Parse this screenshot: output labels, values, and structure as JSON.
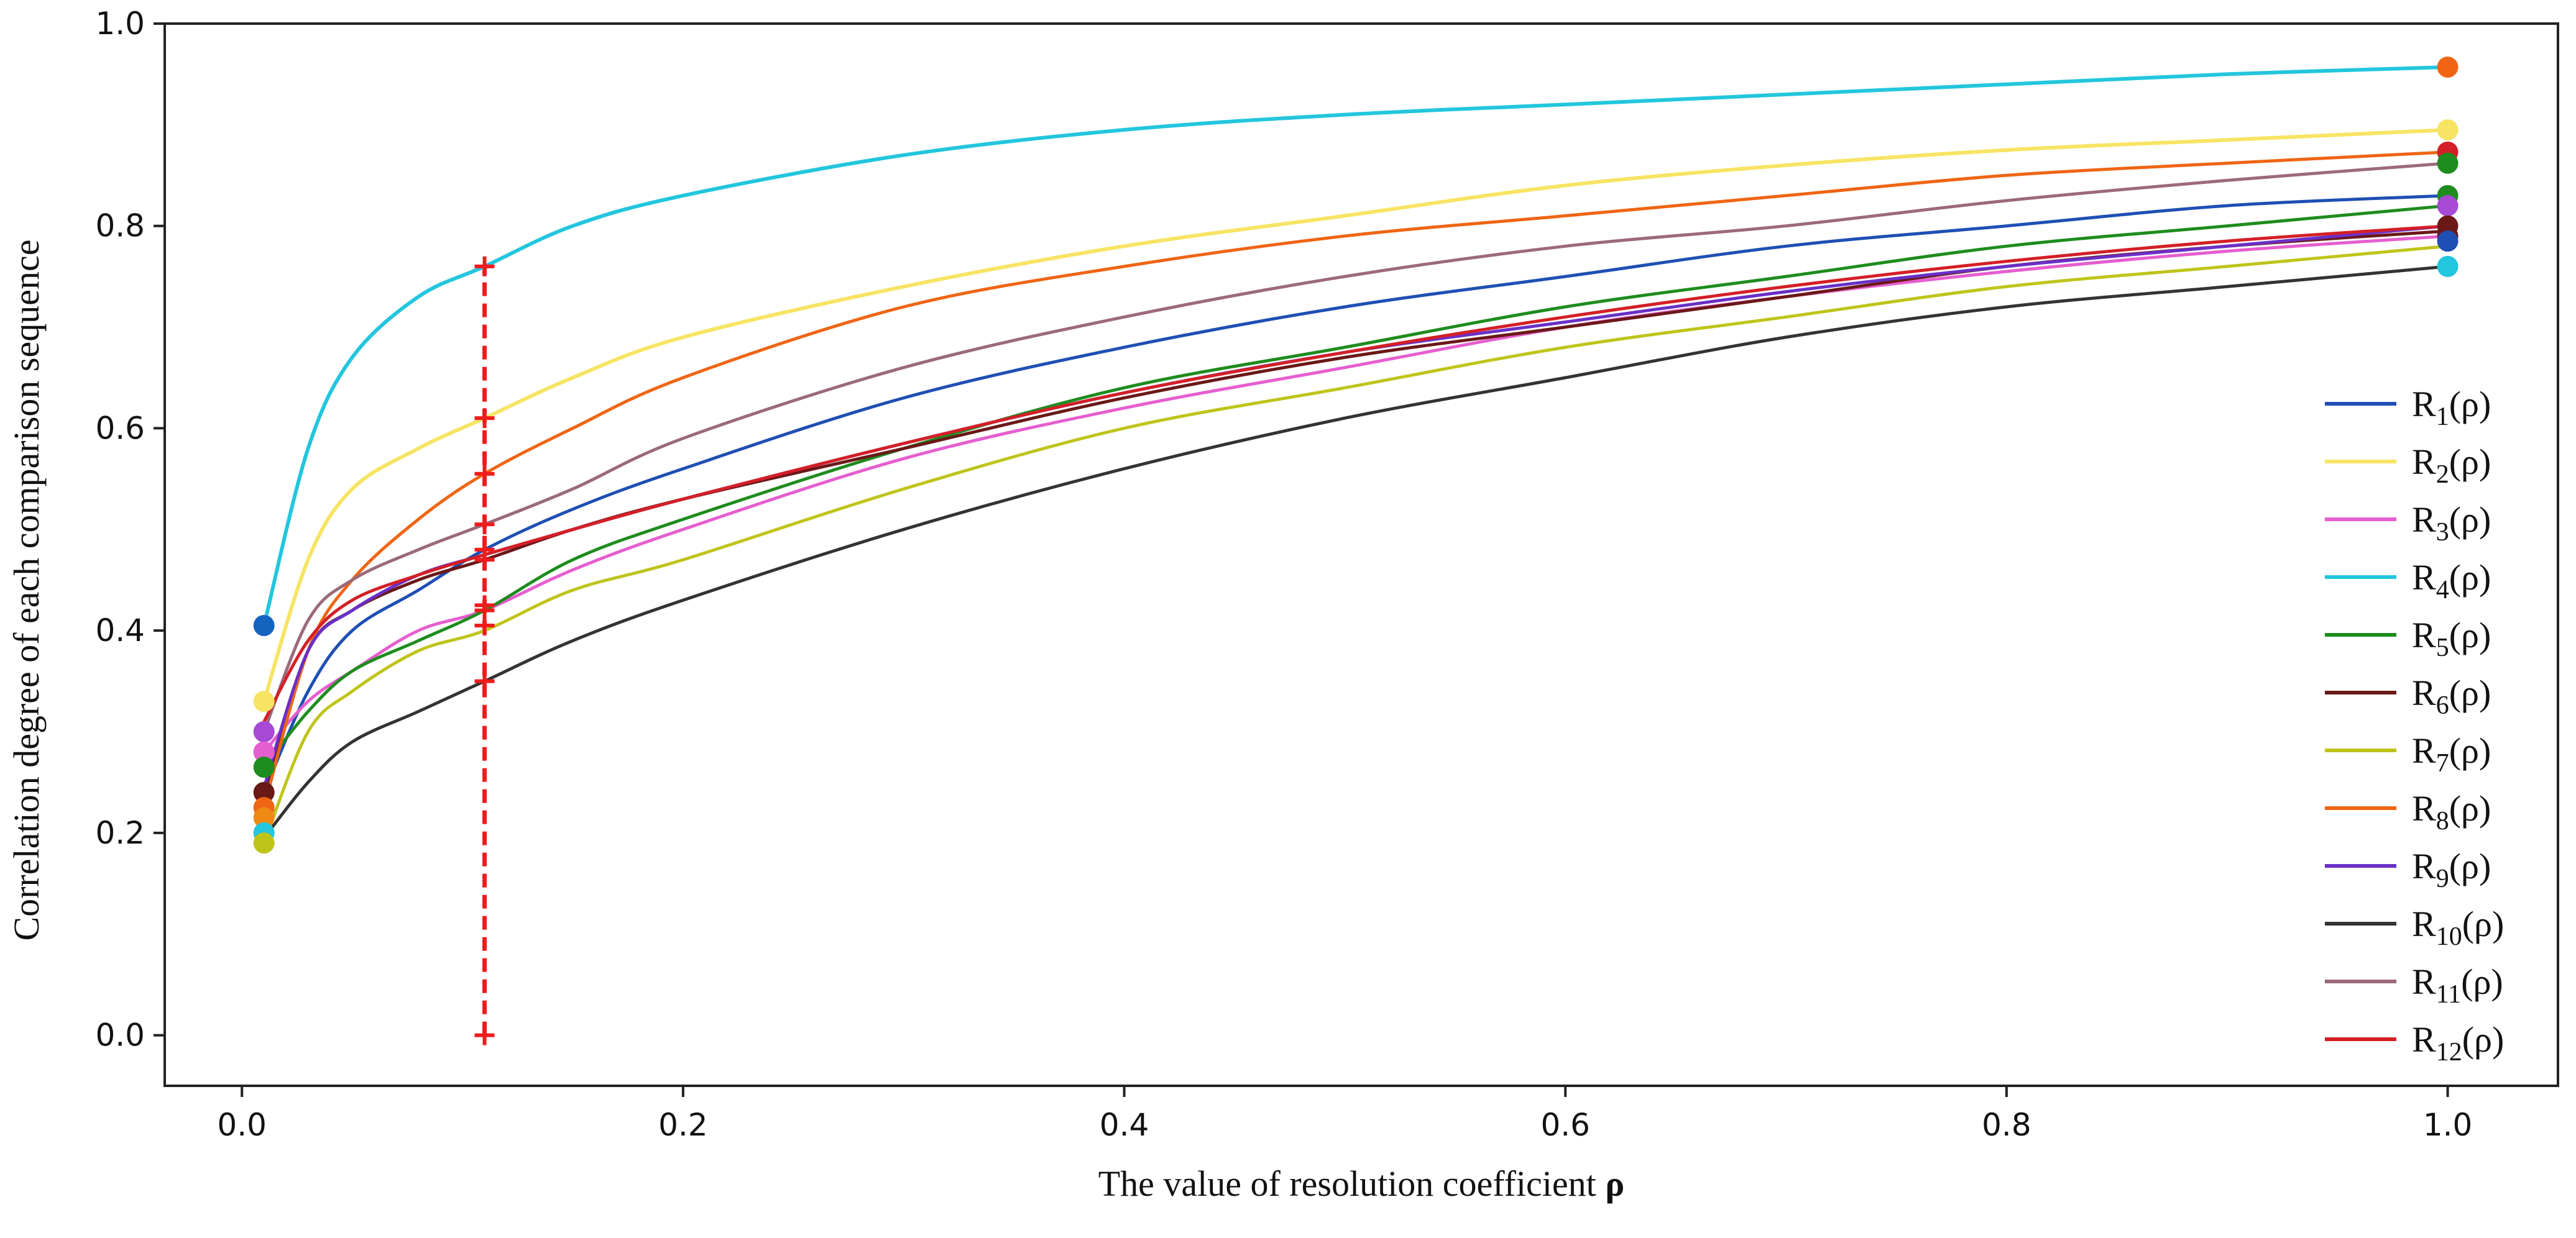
{
  "chart_data": {
    "type": "line",
    "title": "",
    "xlabel": "The value of resolution coefficient ",
    "xlabel_symbol": "ρ",
    "ylabel": "Correlation degree of each comparison sequence",
    "xlim": [
      -0.035,
      1.05
    ],
    "ylim": [
      -0.05,
      1.0
    ],
    "xticks": [
      0.0,
      0.2,
      0.4,
      0.6,
      0.8,
      1.0
    ],
    "xtick_labels": [
      "0.0",
      "0.2",
      "0.4",
      "0.6",
      "0.8",
      "1.0"
    ],
    "yticks": [
      0.0,
      0.2,
      0.4,
      0.6,
      0.8,
      1.0
    ],
    "ytick_labels": [
      "0.0",
      "0.2",
      "0.4",
      "0.6",
      "0.8",
      "1.0"
    ],
    "grid": false,
    "legend_position": "right",
    "x": [
      0.01,
      0.03,
      0.05,
      0.08,
      0.11,
      0.15,
      0.2,
      0.3,
      0.4,
      0.5,
      0.6,
      0.7,
      0.8,
      0.9,
      1.0
    ],
    "series": [
      {
        "name": "R",
        "sub": "1",
        "suffix": "(ρ)",
        "color": "#1f4fb4",
        "values": [
          0.24,
          0.34,
          0.4,
          0.44,
          0.48,
          0.52,
          0.56,
          0.63,
          0.68,
          0.72,
          0.75,
          0.78,
          0.8,
          0.82,
          0.83
        ]
      },
      {
        "name": "R",
        "sub": "2",
        "suffix": "(ρ)",
        "color": "#f7e463",
        "values": [
          0.33,
          0.47,
          0.54,
          0.58,
          0.61,
          0.65,
          0.69,
          0.74,
          0.78,
          0.81,
          0.84,
          0.86,
          0.875,
          0.885,
          0.895
        ]
      },
      {
        "name": "R",
        "sub": "3",
        "suffix": "(ρ)",
        "color": "#e65ecf",
        "values": [
          0.28,
          0.33,
          0.36,
          0.4,
          0.42,
          0.46,
          0.5,
          0.57,
          0.62,
          0.66,
          0.7,
          0.73,
          0.755,
          0.775,
          0.79
        ]
      },
      {
        "name": "R",
        "sub": "4",
        "suffix": "(ρ)",
        "color": "#22c6dd",
        "values": [
          0.405,
          0.58,
          0.67,
          0.73,
          0.76,
          0.8,
          0.83,
          0.87,
          0.895,
          0.91,
          0.92,
          0.93,
          0.94,
          0.95,
          0.957
        ]
      },
      {
        "name": "R",
        "sub": "5",
        "suffix": "(ρ)",
        "color": "#1e8c1e",
        "values": [
          0.265,
          0.32,
          0.36,
          0.39,
          0.42,
          0.47,
          0.51,
          0.58,
          0.64,
          0.68,
          0.72,
          0.75,
          0.78,
          0.8,
          0.82
        ]
      },
      {
        "name": "R",
        "sub": "6",
        "suffix": "(ρ)",
        "color": "#6b1818",
        "values": [
          0.24,
          0.38,
          0.42,
          0.45,
          0.47,
          0.5,
          0.53,
          0.58,
          0.63,
          0.67,
          0.7,
          0.73,
          0.76,
          0.78,
          0.795
        ]
      },
      {
        "name": "R",
        "sub": "7",
        "suffix": "(ρ)",
        "color": "#bfc41a",
        "values": [
          0.19,
          0.3,
          0.34,
          0.38,
          0.4,
          0.44,
          0.47,
          0.54,
          0.6,
          0.64,
          0.68,
          0.71,
          0.74,
          0.76,
          0.78
        ]
      },
      {
        "name": "R",
        "sub": "8",
        "suffix": "(ρ)",
        "color": "#ef6514",
        "values": [
          0.225,
          0.38,
          0.45,
          0.51,
          0.555,
          0.6,
          0.65,
          0.72,
          0.76,
          0.79,
          0.81,
          0.83,
          0.85,
          0.862,
          0.873
        ]
      },
      {
        "name": "R",
        "sub": "9",
        "suffix": "(ρ)",
        "color": "#6a2fc8",
        "values": [
          0.245,
          0.38,
          0.42,
          0.455,
          0.475,
          0.5,
          0.53,
          0.585,
          0.635,
          0.675,
          0.705,
          0.735,
          0.76,
          0.78,
          0.8
        ]
      },
      {
        "name": "R",
        "sub": "10",
        "suffix": "(ρ)",
        "color": "#333333",
        "values": [
          0.195,
          0.25,
          0.29,
          0.32,
          0.35,
          0.39,
          0.43,
          0.5,
          0.56,
          0.61,
          0.65,
          0.69,
          0.72,
          0.74,
          0.76
        ]
      },
      {
        "name": "R",
        "sub": "11",
        "suffix": "(ρ)",
        "color": "#9b6a7a",
        "values": [
          0.3,
          0.41,
          0.45,
          0.48,
          0.505,
          0.54,
          0.59,
          0.66,
          0.71,
          0.75,
          0.78,
          0.8,
          0.825,
          0.845,
          0.862
        ]
      },
      {
        "name": "R",
        "sub": "12",
        "suffix": "(ρ)",
        "color": "#d41f26",
        "values": [
          0.31,
          0.39,
          0.43,
          0.455,
          0.475,
          0.5,
          0.53,
          0.585,
          0.635,
          0.675,
          0.71,
          0.74,
          0.765,
          0.785,
          0.8
        ]
      }
    ],
    "start_markers": [
      {
        "y": 0.405,
        "color": "#1565c0"
      },
      {
        "y": 0.33,
        "color": "#f7e463"
      },
      {
        "y": 0.3,
        "color": "#a64ad6"
      },
      {
        "y": 0.28,
        "color": "#e65ecf"
      },
      {
        "y": 0.265,
        "color": "#1e8c1e"
      },
      {
        "y": 0.24,
        "color": "#6b1818"
      },
      {
        "y": 0.225,
        "color": "#ef6514"
      },
      {
        "y": 0.215,
        "color": "#ef8a14"
      },
      {
        "y": 0.2,
        "color": "#22c6dd"
      },
      {
        "y": 0.19,
        "color": "#bfc41a"
      }
    ],
    "end_markers": [
      {
        "y": 0.957,
        "color": "#ef6514"
      },
      {
        "y": 0.895,
        "color": "#f7e463"
      },
      {
        "y": 0.873,
        "color": "#d41f26"
      },
      {
        "y": 0.862,
        "color": "#1e8c1e"
      },
      {
        "y": 0.83,
        "color": "#1e8c1e"
      },
      {
        "y": 0.82,
        "color": "#a64ad6"
      },
      {
        "y": 0.8,
        "color": "#6b1818"
      },
      {
        "y": 0.79,
        "color": "#6b1818"
      },
      {
        "y": 0.785,
        "color": "#1f4fb4"
      },
      {
        "y": 0.76,
        "color": "#22c6dd"
      }
    ],
    "reference_line": {
      "x": 0.11,
      "y_range": [
        0.0,
        0.76
      ],
      "color": "#ee1c1c",
      "cross_markers_y": [
        0.0,
        0.35,
        0.405,
        0.42,
        0.425,
        0.47,
        0.48,
        0.505,
        0.555,
        0.61,
        0.76
      ]
    }
  }
}
